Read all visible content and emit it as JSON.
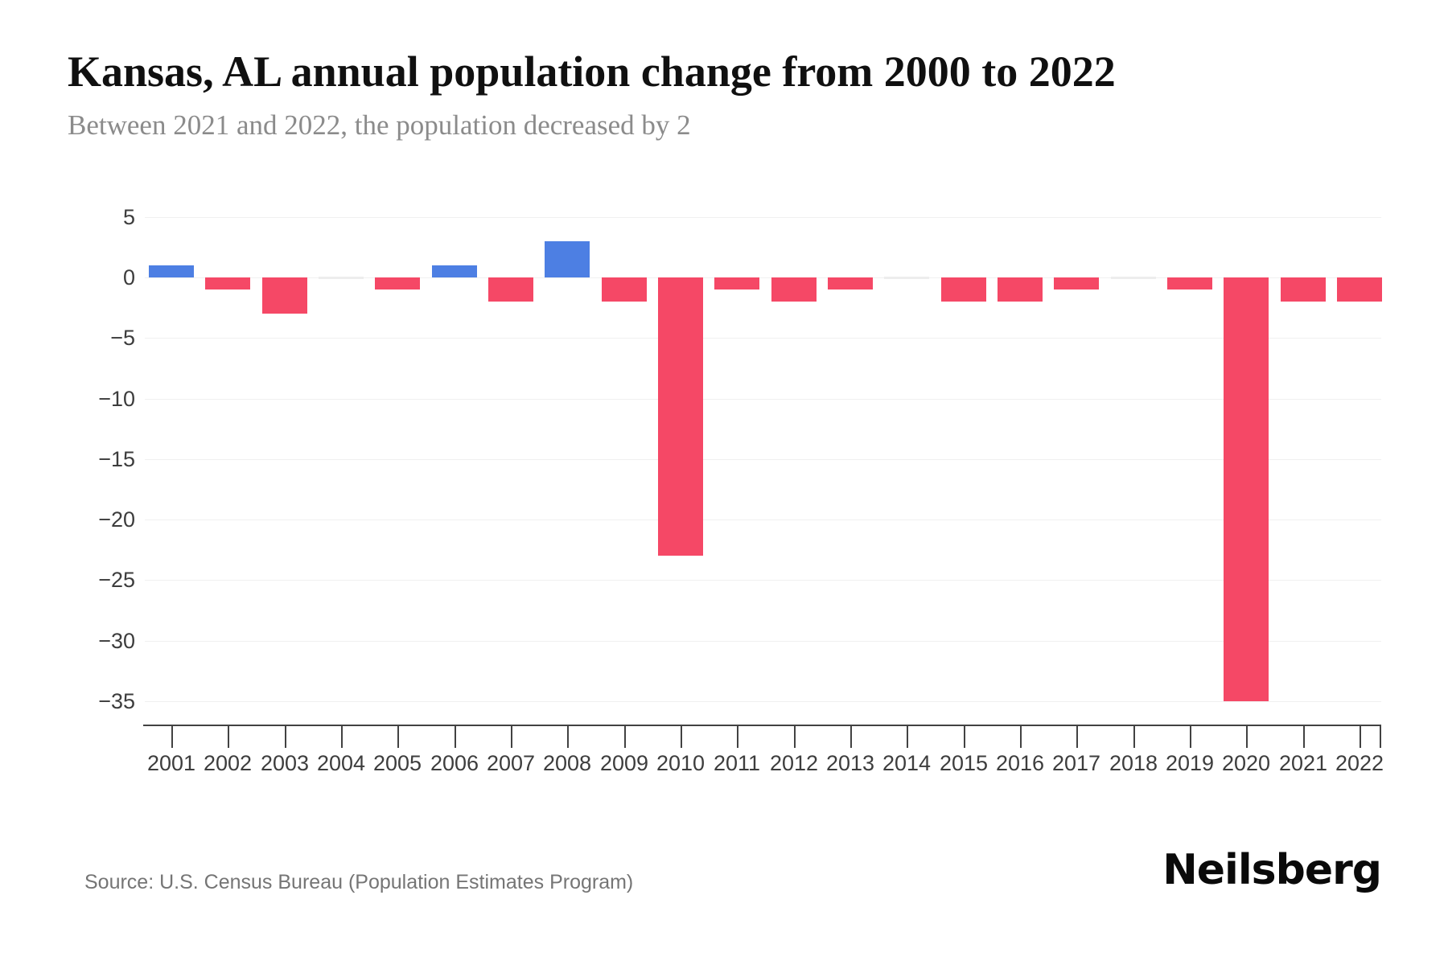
{
  "header": {
    "title": "Kansas, AL annual population change from 2000 to 2022",
    "subtitle": "Between 2021 and 2022, the population decreased by 2"
  },
  "footer": {
    "source": "Source: U.S. Census Bureau (Population Estimates Program)",
    "logo": "Neilsberg"
  },
  "chart_data": {
    "type": "bar",
    "title": "Kansas, AL annual population change from 2000 to 2022",
    "subtitle": "Between 2021 and 2022, the population decreased by 2",
    "categories": [
      "2001",
      "2002",
      "2003",
      "2004",
      "2005",
      "2006",
      "2007",
      "2008",
      "2009",
      "2010",
      "2011",
      "2012",
      "2013",
      "2014",
      "2015",
      "2016",
      "2017",
      "2018",
      "2019",
      "2020",
      "2021",
      "2022"
    ],
    "values": [
      1,
      -1,
      -3,
      0,
      -1,
      1,
      -2,
      3,
      -2,
      -23,
      -1,
      -2,
      -1,
      0,
      -2,
      -2,
      -1,
      0,
      -1,
      -35,
      -2,
      -2
    ],
    "xlabel": "",
    "ylabel": "",
    "yticks": [
      5,
      0,
      -5,
      -10,
      -15,
      -20,
      -25,
      -30,
      -35
    ],
    "ylim": [
      -37,
      5
    ],
    "grid": true,
    "legend": false,
    "colors": {
      "positive": "#4d7fe3",
      "negative": "#f54866",
      "zero": "#ededed"
    }
  }
}
